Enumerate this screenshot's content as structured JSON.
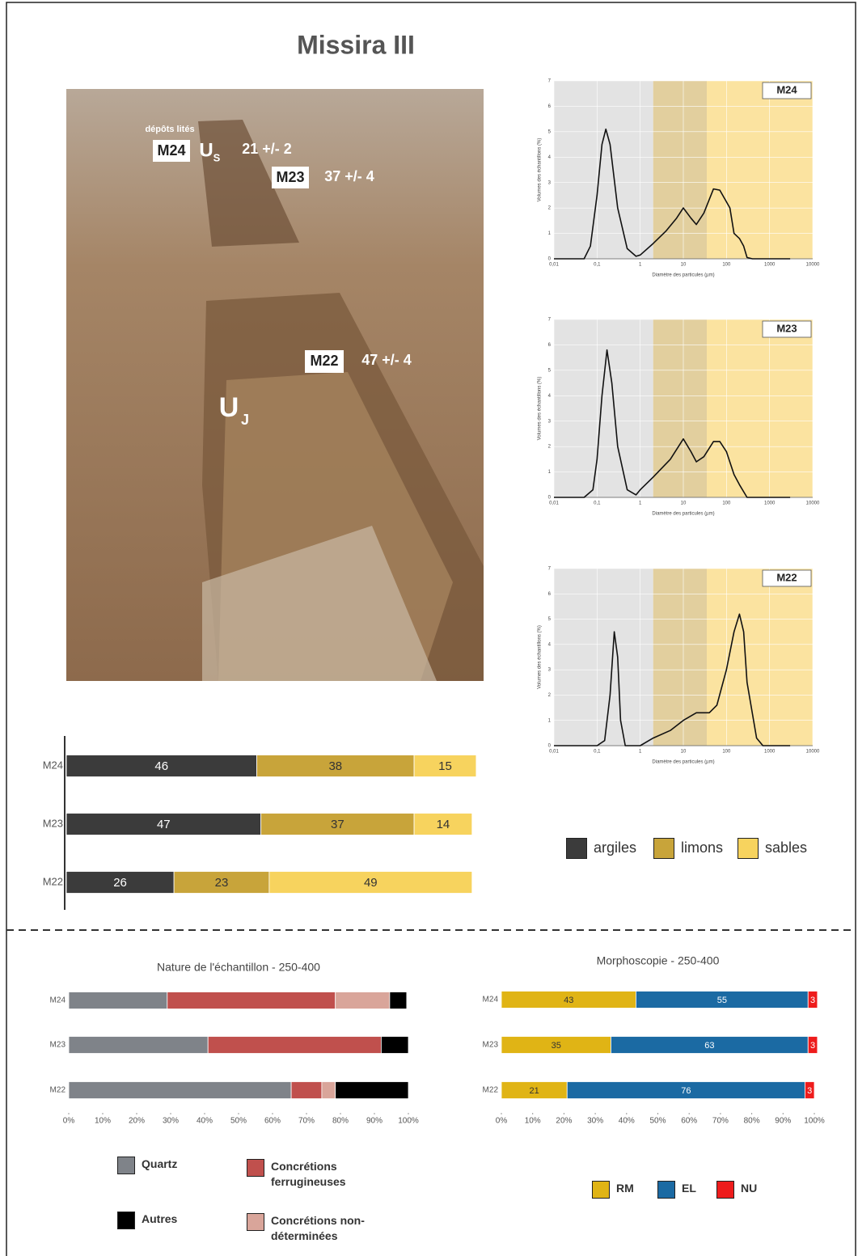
{
  "title": "Missira III",
  "photo": {
    "labels": [
      "dépôts lités",
      "M24",
      "U",
      "S",
      "21 +/- 2",
      "M23",
      "37 +/- 4",
      "M22",
      "47 +/- 4",
      "U",
      "J"
    ]
  },
  "chart_data": [
    {
      "type": "line",
      "title": "M24",
      "ylabel": "Volumes des échantillons (%)",
      "xlabel": "Diamètre des particules (µm)",
      "log_x": true,
      "color": "#111111",
      "bands": [
        {
          "from": 0.01,
          "to": 2,
          "color": "#e3e3e3"
        },
        {
          "from": 2,
          "to": 35,
          "color": "#e2cf9e"
        },
        {
          "from": 35,
          "to": 10000,
          "color": "#fbe3a0"
        }
      ],
      "x": [
        0.01,
        0.05,
        0.07,
        0.1,
        0.13,
        0.16,
        0.2,
        0.3,
        0.5,
        0.8,
        1,
        2,
        4,
        7,
        10,
        15,
        20,
        30,
        50,
        70,
        120,
        150,
        200,
        250,
        300,
        400,
        3000
      ],
      "values": [
        0,
        0,
        0.5,
        2.5,
        4.5,
        5.1,
        4.5,
        2,
        0.4,
        0.1,
        0.15,
        0.6,
        1.1,
        1.6,
        2,
        1.6,
        1.35,
        1.8,
        2.75,
        2.7,
        2,
        1,
        0.8,
        0.5,
        0.05,
        0,
        0
      ],
      "xlim": [
        0.01,
        10000
      ],
      "xticks": [
        {
          "value": 0.01,
          "label": "0,01"
        },
        {
          "value": 0.1,
          "label": "0,1"
        },
        1,
        10,
        100,
        1000,
        10000
      ],
      "ylim": [
        0,
        7
      ],
      "yticks": [
        0,
        1,
        2,
        3,
        4,
        5,
        6,
        7
      ]
    },
    {
      "type": "line",
      "title": "M23",
      "ylabel": "Volumes des échantillons (%)",
      "xlabel": "Diamètre des particules (µm)",
      "log_x": true,
      "color": "#111111",
      "bands": [
        {
          "from": 0.01,
          "to": 2,
          "color": "#e3e3e3"
        },
        {
          "from": 2,
          "to": 35,
          "color": "#e2cf9e"
        },
        {
          "from": 35,
          "to": 10000,
          "color": "#fbe3a0"
        }
      ],
      "x": [
        0.01,
        0.05,
        0.08,
        0.1,
        0.13,
        0.17,
        0.22,
        0.3,
        0.5,
        0.8,
        1,
        2,
        5,
        10,
        15,
        20,
        30,
        50,
        70,
        100,
        150,
        200,
        300,
        3000
      ],
      "values": [
        0,
        0,
        0.3,
        1.5,
        4,
        5.8,
        4.5,
        2,
        0.3,
        0.1,
        0.3,
        0.8,
        1.5,
        2.3,
        1.8,
        1.4,
        1.6,
        2.2,
        2.2,
        1.8,
        0.9,
        0.5,
        0,
        0
      ],
      "xlim": [
        0.01,
        10000
      ],
      "xticks": [
        {
          "value": 0.01,
          "label": "0,01"
        },
        {
          "value": 0.1,
          "label": "0,1"
        },
        1,
        10,
        100,
        1000,
        10000
      ],
      "ylim": [
        0,
        7
      ],
      "yticks": [
        0,
        1,
        2,
        3,
        4,
        5,
        6,
        7
      ]
    },
    {
      "type": "line",
      "title": "M22",
      "ylabel": "Volumes des échantillons (%)",
      "xlabel": "Diamètre des particules (µm)",
      "log_x": true,
      "color": "#111111",
      "bands": [
        {
          "from": 0.01,
          "to": 2,
          "color": "#e3e3e3"
        },
        {
          "from": 2,
          "to": 35,
          "color": "#e2cf9e"
        },
        {
          "from": 35,
          "to": 10000,
          "color": "#fbe3a0"
        }
      ],
      "x": [
        0.01,
        0.1,
        0.15,
        0.2,
        0.25,
        0.3,
        0.35,
        0.45,
        1,
        2,
        5,
        10,
        20,
        40,
        60,
        100,
        150,
        200,
        250,
        300,
        500,
        700,
        3000
      ],
      "values": [
        0,
        0,
        0.2,
        2,
        4.5,
        3.5,
        1,
        0,
        0,
        0.3,
        0.6,
        1,
        1.3,
        1.3,
        1.6,
        3,
        4.5,
        5.2,
        4.5,
        2.5,
        0.3,
        0,
        0
      ],
      "xlim": [
        0.01,
        10000
      ],
      "xticks": [
        {
          "value": 0.01,
          "label": "0,01"
        },
        {
          "value": 0.1,
          "label": "0,1"
        },
        1,
        10,
        100,
        1000,
        10000
      ],
      "ylim": [
        0,
        7
      ],
      "yticks": [
        0,
        1,
        2,
        3,
        4,
        5,
        6,
        7
      ]
    },
    {
      "type": "bar",
      "stacked": true,
      "orientation": "horizontal",
      "data_labels": true,
      "categories": [
        "M24",
        "M23",
        "M22"
      ],
      "xlim": [
        0,
        100
      ],
      "series": [
        {
          "name": "argiles",
          "color": "#3b3b3b",
          "values": [
            46,
            47,
            26
          ]
        },
        {
          "name": "limons",
          "color": "#c8a43a",
          "values": [
            38,
            37,
            23
          ]
        },
        {
          "name": "sables",
          "color": "#f7d35e",
          "values": [
            15,
            14,
            49
          ]
        }
      ]
    },
    {
      "type": "bar",
      "stacked": true,
      "orientation": "horizontal",
      "title": "Nature de l'échantillon - 250-400",
      "categories": [
        "M24",
        "M23",
        "M22"
      ],
      "xlim": [
        0,
        100
      ],
      "xticks": [
        {
          "value": 0,
          "label": "0%"
        },
        {
          "value": 10,
          "label": "10%"
        },
        {
          "value": 20,
          "label": "20%"
        },
        {
          "value": 30,
          "label": "30%"
        },
        {
          "value": 40,
          "label": "40%"
        },
        {
          "value": 50,
          "label": "50%"
        },
        {
          "value": 60,
          "label": "60%"
        },
        {
          "value": 70,
          "label": "70%"
        },
        {
          "value": 80,
          "label": "80%"
        },
        {
          "value": 90,
          "label": "90%"
        },
        {
          "value": 100,
          "label": "100%"
        }
      ],
      "series": [
        {
          "name": "Quartz",
          "color": "#7f8389",
          "values": [
            29,
            41,
            65.5
          ]
        },
        {
          "name": "Concrétions ferrugineuses",
          "color": "#c0504d",
          "values": [
            49.5,
            51,
            9
          ]
        },
        {
          "name": "Concrétions non-déterminées",
          "color": "#d9a59a",
          "values": [
            16,
            0,
            4
          ]
        },
        {
          "name": "Autres",
          "color": "#000000",
          "values": [
            5,
            8,
            21.5
          ]
        }
      ]
    },
    {
      "type": "bar",
      "stacked": true,
      "orientation": "horizontal",
      "data_labels": true,
      "title": "Morphoscopie - 250-400",
      "categories": [
        "M24",
        "M23",
        "M22"
      ],
      "xlim": [
        0,
        100
      ],
      "xticks": [
        {
          "value": 0,
          "label": "0%"
        },
        {
          "value": 10,
          "label": "10%"
        },
        {
          "value": 20,
          "label": "20%"
        },
        {
          "value": 30,
          "label": "30%"
        },
        {
          "value": 40,
          "label": "40%"
        },
        {
          "value": 50,
          "label": "50%"
        },
        {
          "value": 60,
          "label": "60%"
        },
        {
          "value": 70,
          "label": "70%"
        },
        {
          "value": 80,
          "label": "80%"
        },
        {
          "value": 90,
          "label": "90%"
        },
        {
          "value": 100,
          "label": "100%"
        }
      ],
      "series": [
        {
          "name": "RM",
          "color": "#e0b415",
          "values": [
            43,
            35,
            21
          ]
        },
        {
          "name": "EL",
          "color": "#1b6aa3",
          "values": [
            55,
            63,
            76
          ]
        },
        {
          "name": "NU",
          "color": "#ee1c1c",
          "values": [
            3,
            3,
            3
          ]
        }
      ]
    }
  ]
}
